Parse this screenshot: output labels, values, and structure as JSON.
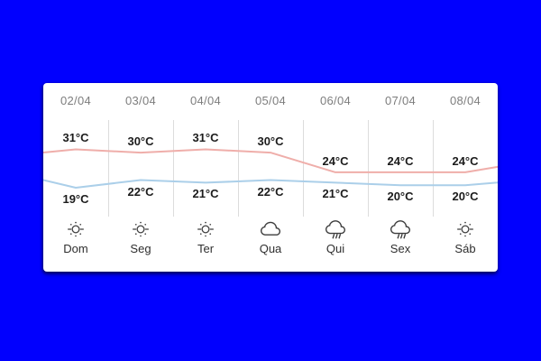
{
  "window": {
    "background": "#0100fe"
  },
  "card": {
    "background": "#ffffff"
  },
  "colors": {
    "grid": "#dcdcdc",
    "date_text": "#7d7d7d",
    "temp_text": "#1c1c1c",
    "day_text": "#2e2e2e",
    "high_line": "#efaeaa",
    "low_line": "#abcfe9"
  },
  "forecast": {
    "days": [
      {
        "date": "02/04",
        "high_label": "31°C",
        "low_label": "19°C",
        "icon": "sun",
        "day": "Dom"
      },
      {
        "date": "03/04",
        "high_label": "30°C",
        "low_label": "22°C",
        "icon": "sun",
        "day": "Seg"
      },
      {
        "date": "04/04",
        "high_label": "31°C",
        "low_label": "21°C",
        "icon": "sun",
        "day": "Ter"
      },
      {
        "date": "05/04",
        "high_label": "30°C",
        "low_label": "22°C",
        "icon": "cloud",
        "day": "Qua"
      },
      {
        "date": "06/04",
        "high_label": "24°C",
        "low_label": "21°C",
        "icon": "rain",
        "day": "Qui"
      },
      {
        "date": "07/04",
        "high_label": "24°C",
        "low_label": "20°C",
        "icon": "rain",
        "day": "Sex"
      },
      {
        "date": "08/04",
        "high_label": "24°C",
        "low_label": "20°C",
        "icon": "sun",
        "day": "Sáb"
      }
    ]
  },
  "chart_data": {
    "type": "line",
    "categories": [
      "02/04",
      "03/04",
      "04/04",
      "05/04",
      "06/04",
      "07/04",
      "08/04"
    ],
    "series": [
      {
        "name": "max-temp",
        "unit": "°C",
        "color": "#efaeaa",
        "values": [
          31,
          30,
          31,
          30,
          24,
          24,
          24
        ]
      },
      {
        "name": "min-temp",
        "unit": "°C",
        "color": "#abcfe9",
        "values": [
          19,
          22,
          21,
          22,
          21,
          20,
          20
        ]
      }
    ],
    "grid": "vertical-only",
    "legend": "none"
  }
}
